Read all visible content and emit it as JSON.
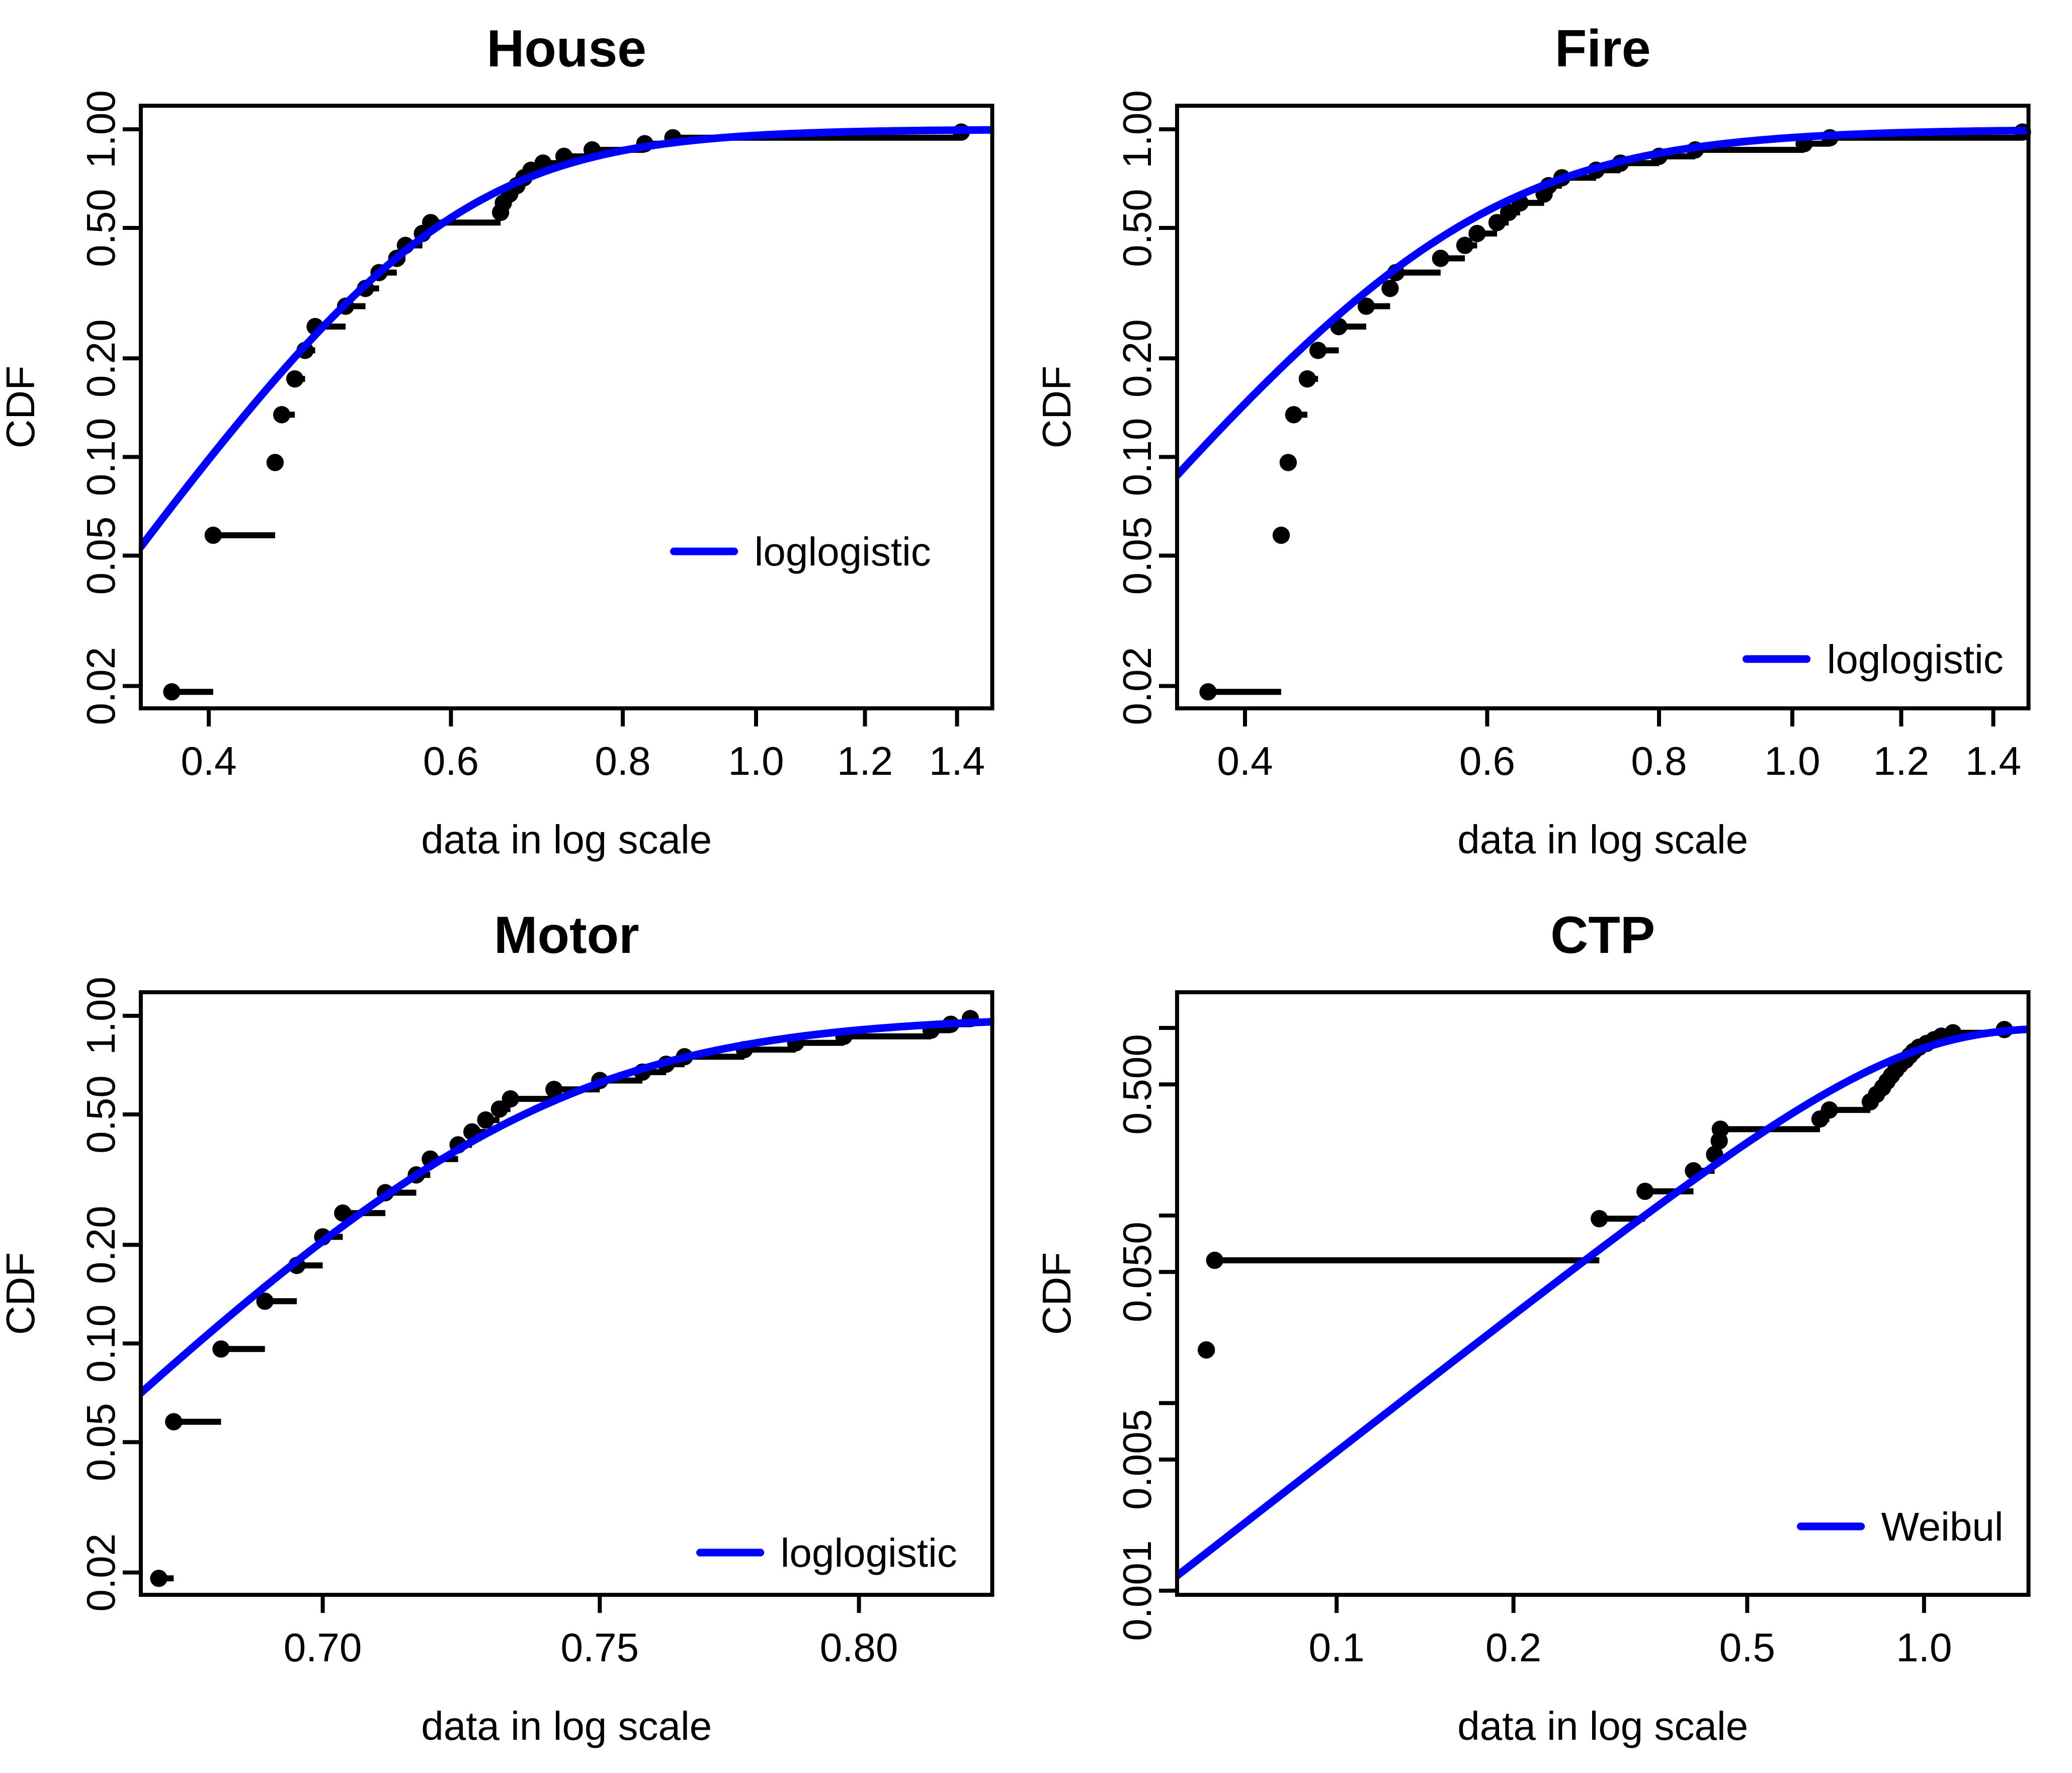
{
  "figure": {
    "background": "#ffffff",
    "axis_color": "#000000",
    "point_color": "#000000",
    "fit_line_color": "#0000ff"
  },
  "chart_data": [
    {
      "type": "line",
      "subtype": "empirical-cdf-steps-with-fitted-curve",
      "title": "House",
      "xlabel": "data in log scale",
      "ylabel": "CDF",
      "x_scale": "log",
      "y_scale": "log",
      "x_domain": [
        0.357,
        1.485
      ],
      "y_domain": [
        0.0171,
        1.18
      ],
      "x_ticks": [
        {
          "v": 0.4,
          "label": "0.4"
        },
        {
          "v": 0.6,
          "label": "0.6"
        },
        {
          "v": 0.8,
          "label": "0.8"
        },
        {
          "v": 1.0,
          "label": "1.0"
        },
        {
          "v": 1.2,
          "label": "1.2"
        },
        {
          "v": 1.4,
          "label": "1.4"
        }
      ],
      "y_ticks": [
        {
          "v": 1.0,
          "label": "1.00"
        },
        {
          "v": 0.5,
          "label": "0.50"
        },
        {
          "v": 0.2,
          "label": "0.20"
        },
        {
          "v": 0.1,
          "label": "0.10"
        },
        {
          "v": 0.05,
          "label": "0.05"
        },
        {
          "v": 0.02,
          "label": "0.02"
        }
      ],
      "empirical": {
        "n": 26,
        "plotting_position": "(i-0.5)/26",
        "x": [
          0.376,
          0.403,
          0.447,
          0.452,
          0.462,
          0.47,
          0.478,
          0.503,
          0.52,
          0.532,
          0.548,
          0.556,
          0.572,
          0.58,
          0.652,
          0.655,
          0.662,
          0.67,
          0.678,
          0.686,
          0.7,
          0.725,
          0.76,
          0.83,
          0.87,
          1.41
        ],
        "cdf": [
          0.0192,
          0.0577,
          0.0962,
          0.1346,
          0.1731,
          0.2115,
          0.25,
          0.2885,
          0.3269,
          0.3654,
          0.4038,
          0.4423,
          0.4808,
          0.5192,
          0.5577,
          0.5962,
          0.6346,
          0.6731,
          0.7115,
          0.75,
          0.7885,
          0.8269,
          0.8654,
          0.9038,
          0.9423,
          0.9808
        ]
      },
      "fit": {
        "type": "loglogistic",
        "alpha": 0.585,
        "beta": 5.83
      },
      "legend": {
        "label": "loglogistic",
        "line_x1": 335,
        "line_x2": 365,
        "text_x": 375,
        "y": 274
      }
    },
    {
      "type": "line",
      "subtype": "empirical-cdf-steps-with-fitted-curve",
      "title": "Fire",
      "xlabel": "data in log scale",
      "ylabel": "CDF",
      "x_scale": "log",
      "y_scale": "log",
      "x_domain": [
        0.357,
        1.485
      ],
      "y_domain": [
        0.0171,
        1.18
      ],
      "x_ticks": [
        {
          "v": 0.4,
          "label": "0.4"
        },
        {
          "v": 0.6,
          "label": "0.6"
        },
        {
          "v": 0.8,
          "label": "0.8"
        },
        {
          "v": 1.0,
          "label": "1.0"
        },
        {
          "v": 1.2,
          "label": "1.2"
        },
        {
          "v": 1.4,
          "label": "1.4"
        }
      ],
      "y_ticks": [
        {
          "v": 1.0,
          "label": "1.00"
        },
        {
          "v": 0.5,
          "label": "0.50"
        },
        {
          "v": 0.2,
          "label": "0.20"
        },
        {
          "v": 0.1,
          "label": "0.10"
        },
        {
          "v": 0.05,
          "label": "0.05"
        },
        {
          "v": 0.02,
          "label": "0.02"
        }
      ],
      "empirical": {
        "n": 26,
        "plotting_position": "(i-0.5)/26",
        "x": [
          0.376,
          0.425,
          0.43,
          0.434,
          0.444,
          0.452,
          0.468,
          0.49,
          0.51,
          0.515,
          0.555,
          0.578,
          0.59,
          0.61,
          0.622,
          0.634,
          0.66,
          0.665,
          0.68,
          0.72,
          0.75,
          0.8,
          0.85,
          1.02,
          1.065,
          1.47
        ],
        "cdf": [
          0.0192,
          0.0577,
          0.0962,
          0.1346,
          0.1731,
          0.2115,
          0.25,
          0.2885,
          0.3269,
          0.3654,
          0.4038,
          0.4423,
          0.4808,
          0.5192,
          0.5577,
          0.5962,
          0.6346,
          0.6731,
          0.7115,
          0.75,
          0.7885,
          0.8269,
          0.8654,
          0.9038,
          0.9423,
          0.9808
        ]
      },
      "fit": {
        "type": "loglogistic",
        "alpha": 0.57,
        "beta": 5.0
      },
      "legend": {
        "label": "loglogistic",
        "line_x1": 353,
        "line_x2": 383,
        "text_x": 393,
        "y": 327.5
      }
    },
    {
      "type": "line",
      "subtype": "empirical-cdf-steps-with-fitted-curve",
      "title": "Motor",
      "xlabel": "data in log scale",
      "ylabel": "CDF",
      "x_scale": "log",
      "y_scale": "log",
      "x_domain": [
        0.669,
        0.827
      ],
      "y_domain": [
        0.0171,
        1.18
      ],
      "x_ticks": [
        {
          "v": 0.7,
          "label": "0.70"
        },
        {
          "v": 0.75,
          "label": "0.75"
        },
        {
          "v": 0.8,
          "label": "0.80"
        }
      ],
      "y_ticks": [
        {
          "v": 1.0,
          "label": "1.00"
        },
        {
          "v": 0.5,
          "label": "0.50"
        },
        {
          "v": 0.2,
          "label": "0.20"
        },
        {
          "v": 0.1,
          "label": "0.10"
        },
        {
          "v": 0.05,
          "label": "0.05"
        },
        {
          "v": 0.02,
          "label": "0.02"
        }
      ],
      "empirical": {
        "n": 26,
        "plotting_position": "(i-0.5)/26",
        "x": [
          0.672,
          0.6745,
          0.6825,
          0.69,
          0.6955,
          0.7,
          0.7035,
          0.711,
          0.7165,
          0.719,
          0.724,
          0.7265,
          0.729,
          0.7315,
          0.7335,
          0.7415,
          0.75,
          0.758,
          0.7625,
          0.766,
          0.7775,
          0.7875,
          0.797,
          0.8145,
          0.8185,
          0.8225
        ],
        "cdf": [
          0.0192,
          0.0577,
          0.0962,
          0.1346,
          0.1731,
          0.2115,
          0.25,
          0.2885,
          0.3269,
          0.3654,
          0.4038,
          0.4423,
          0.4808,
          0.5192,
          0.5577,
          0.5962,
          0.6346,
          0.6731,
          0.7115,
          0.75,
          0.7885,
          0.8269,
          0.8654,
          0.9038,
          0.9423,
          0.9808
        ]
      },
      "fit": {
        "type": "loglogistic",
        "alpha": 0.736,
        "beta": 27
      },
      "legend": {
        "label": "loglogistic",
        "line_x1": 348,
        "line_x2": 378,
        "text_x": 388,
        "y": 331
      }
    },
    {
      "type": "line",
      "subtype": "empirical-cdf-steps-with-fitted-curve",
      "title": "CTP",
      "xlabel": "data in log scale",
      "ylabel": "CDF",
      "x_scale": "log",
      "y_scale": "log",
      "x_domain": [
        0.0535,
        1.506
      ],
      "y_domain": [
        0.00095,
        1.55
      ],
      "x_ticks": [
        {
          "v": 0.1,
          "label": "0.1"
        },
        {
          "v": 0.2,
          "label": "0.2"
        },
        {
          "v": 0.5,
          "label": "0.5"
        },
        {
          "v": 1.0,
          "label": "1.0"
        }
      ],
      "y_ticks": [
        {
          "v": 1.0,
          "label": ""
        },
        {
          "v": 0.5,
          "label": "0.500"
        },
        {
          "v": 0.1,
          "label": ""
        },
        {
          "v": 0.05,
          "label": "0.050"
        },
        {
          "v": 0.01,
          "label": ""
        },
        {
          "v": 0.005,
          "label": "0.005"
        },
        {
          "v": 0.001,
          "label": "0.001"
        }
      ],
      "empirical": {
        "n": 26,
        "plotting_position": "(i-0.5)/26",
        "x": [
          0.06,
          0.062,
          0.28,
          0.335,
          0.405,
          0.44,
          0.448,
          0.45,
          0.665,
          0.69,
          0.81,
          0.83,
          0.85,
          0.865,
          0.88,
          0.895,
          0.91,
          0.93,
          0.945,
          0.96,
          0.98,
          1.01,
          1.04,
          1.07,
          1.12,
          1.37
        ],
        "cdf": [
          0.0192,
          0.0577,
          0.0962,
          0.1346,
          0.1731,
          0.2115,
          0.25,
          0.2885,
          0.3269,
          0.3654,
          0.4038,
          0.4423,
          0.4808,
          0.5192,
          0.5577,
          0.5962,
          0.6346,
          0.6731,
          0.7115,
          0.75,
          0.7885,
          0.8269,
          0.8654,
          0.9038,
          0.9423,
          0.9808
        ]
      },
      "fit": {
        "type": "weibull",
        "lambda": 0.842,
        "k": 2.44
      },
      "legend": {
        "label": "Weibul",
        "line_x1": 380,
        "line_x2": 410,
        "text_x": 420,
        "y": 318
      }
    }
  ]
}
